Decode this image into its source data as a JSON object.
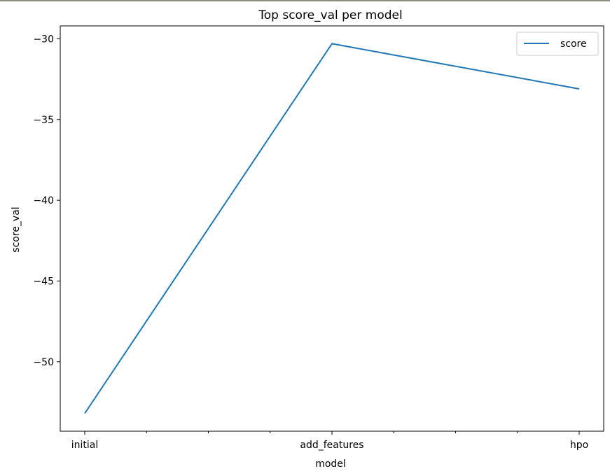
{
  "chart_data": {
    "type": "line",
    "title": "Top score_val per model",
    "xlabel": "model",
    "ylabel": "score_val",
    "categories": [
      "initial",
      "add_features",
      "hpo"
    ],
    "series": [
      {
        "name": "score",
        "values": [
          -53.2,
          -30.3,
          -33.1
        ],
        "color": "#1f77b4"
      }
    ],
    "y_ticks": [
      -30,
      -35,
      -40,
      -45,
      -50
    ],
    "y_tick_labels": [
      "−30",
      "−35",
      "−40",
      "−45",
      "−50"
    ],
    "ylim": [
      -54.3,
      -29.2
    ],
    "legend": {
      "position": "top-right",
      "entries": [
        "score"
      ]
    },
    "grid": false
  }
}
